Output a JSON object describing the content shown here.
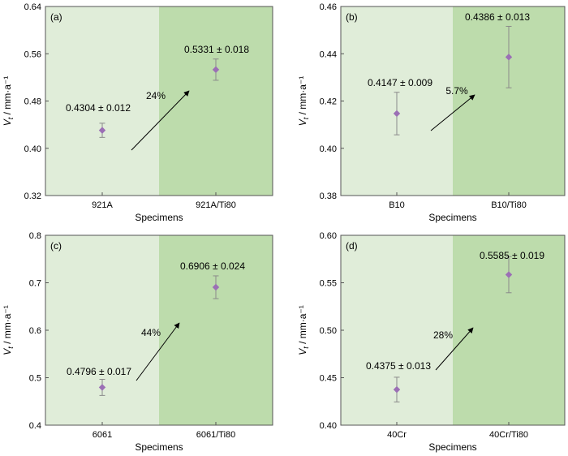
{
  "colors": {
    "left_region": "#e0edd9",
    "right_region": "#bddcac",
    "marker": "#9b6fb5",
    "errorbar": "#8a8a8a",
    "arrow": "#000000"
  },
  "chart_data": [
    {
      "type": "scatter",
      "panel_label": "(a)",
      "categories": [
        "921A",
        "921A/Ti80"
      ],
      "values": [
        0.4304,
        0.5331
      ],
      "errors": [
        0.012,
        0.018
      ],
      "value_labels": [
        "0.4304 ± 0.012",
        "0.5331 ± 0.018"
      ],
      "increase_label": "24%",
      "xlabel": "Specimens",
      "ylabel": "V_t / mm·a⁻¹",
      "ylim": [
        0.32,
        0.64
      ],
      "yticks": [
        0.32,
        0.4,
        0.48,
        0.56,
        0.64
      ],
      "ytick_labels": [
        "0.32",
        "0.40",
        "0.48",
        "0.56",
        "0.64"
      ],
      "grid": false
    },
    {
      "type": "scatter",
      "panel_label": "(b)",
      "categories": [
        "B10",
        "B10/Ti80"
      ],
      "values": [
        0.4147,
        0.4386
      ],
      "errors": [
        0.009,
        0.013
      ],
      "value_labels": [
        "0.4147 ± 0.009",
        "0.4386 ± 0.013"
      ],
      "increase_label": "5.7%",
      "xlabel": "Specimens",
      "ylabel": "V_t / mm·a⁻¹",
      "ylim": [
        0.38,
        0.46
      ],
      "yticks": [
        0.38,
        0.4,
        0.42,
        0.44,
        0.46
      ],
      "ytick_labels": [
        "0.38",
        "0.40",
        "0.42",
        "0.44",
        "0.46"
      ],
      "grid": false
    },
    {
      "type": "scatter",
      "panel_label": "(c)",
      "categories": [
        "6061",
        "6061/Ti80"
      ],
      "values": [
        0.4796,
        0.6906
      ],
      "errors": [
        0.017,
        0.024
      ],
      "value_labels": [
        "0.4796 ± 0.017",
        "0.6906 ± 0.024"
      ],
      "increase_label": "44%",
      "xlabel": "Specimens",
      "ylabel": "V_t / mm·a⁻¹",
      "ylim": [
        0.4,
        0.8
      ],
      "yticks": [
        0.4,
        0.5,
        0.6,
        0.7,
        0.8
      ],
      "ytick_labels": [
        "0.4",
        "0.5",
        "0.6",
        "0.7",
        "0.8"
      ],
      "grid": false
    },
    {
      "type": "scatter",
      "panel_label": "(d)",
      "categories": [
        "40Cr",
        "40Cr/Ti80"
      ],
      "values": [
        0.4375,
        0.5585
      ],
      "errors": [
        0.013,
        0.019
      ],
      "value_labels": [
        "0.4375 ± 0.013",
        "0.5585 ± 0.019"
      ],
      "increase_label": "28%",
      "xlabel": "Specimens",
      "ylabel": "V_t / mm·a⁻¹",
      "ylim": [
        0.4,
        0.6
      ],
      "yticks": [
        0.4,
        0.45,
        0.5,
        0.55,
        0.6
      ],
      "ytick_labels": [
        "0.40",
        "0.45",
        "0.50",
        "0.55",
        "0.60"
      ],
      "grid": false
    }
  ]
}
